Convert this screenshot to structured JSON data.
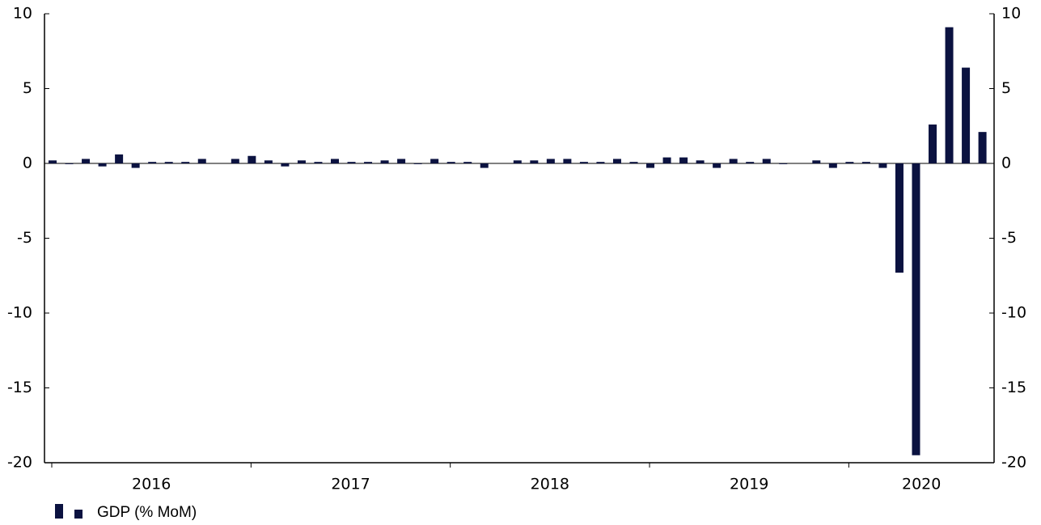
{
  "chart_data": {
    "type": "bar",
    "categories": [
      null,
      null,
      null,
      null,
      null,
      null,
      null,
      null,
      null,
      null,
      null,
      null,
      null,
      null,
      null,
      null,
      null,
      null,
      null,
      null,
      null,
      null,
      null,
      null,
      null,
      null,
      null,
      null,
      null,
      null,
      null,
      null,
      null,
      null,
      null,
      null,
      null,
      null,
      null,
      null,
      null,
      null,
      null,
      null,
      null,
      null,
      null,
      null,
      null,
      null,
      null,
      null,
      null,
      null,
      null,
      null,
      null
    ],
    "xtick_labels": [
      "2016",
      "2017",
      "2018",
      "2019",
      "2020"
    ],
    "series": [
      {
        "name": "GDP (% MoM)",
        "color": "#0b1240",
        "values": [
          0.2,
          -0.05,
          0.3,
          -0.2,
          0.6,
          -0.3,
          0.1,
          0.1,
          0.1,
          0.3,
          0.0,
          0.3,
          0.5,
          0.2,
          -0.2,
          0.2,
          0.1,
          0.3,
          0.1,
          0.1,
          0.2,
          0.3,
          -0.05,
          0.3,
          0.1,
          0.1,
          -0.3,
          0.0,
          0.2,
          0.2,
          0.3,
          0.3,
          0.1,
          0.1,
          0.3,
          0.1,
          -0.3,
          0.4,
          0.4,
          0.2,
          -0.3,
          0.3,
          0.1,
          0.3,
          -0.05,
          0.0,
          0.2,
          -0.3,
          0.1,
          0.1,
          -0.3,
          -7.3,
          -19.5,
          2.6,
          9.1,
          6.4,
          2.1
        ]
      }
    ],
    "ylim": [
      -20,
      10
    ],
    "yticks": [
      -20,
      -15,
      -10,
      -5,
      0,
      5,
      10
    ],
    "y2lim": [
      -20,
      10
    ],
    "y2ticks": [
      -20,
      -15,
      -10,
      -5,
      0,
      5,
      10
    ]
  }
}
